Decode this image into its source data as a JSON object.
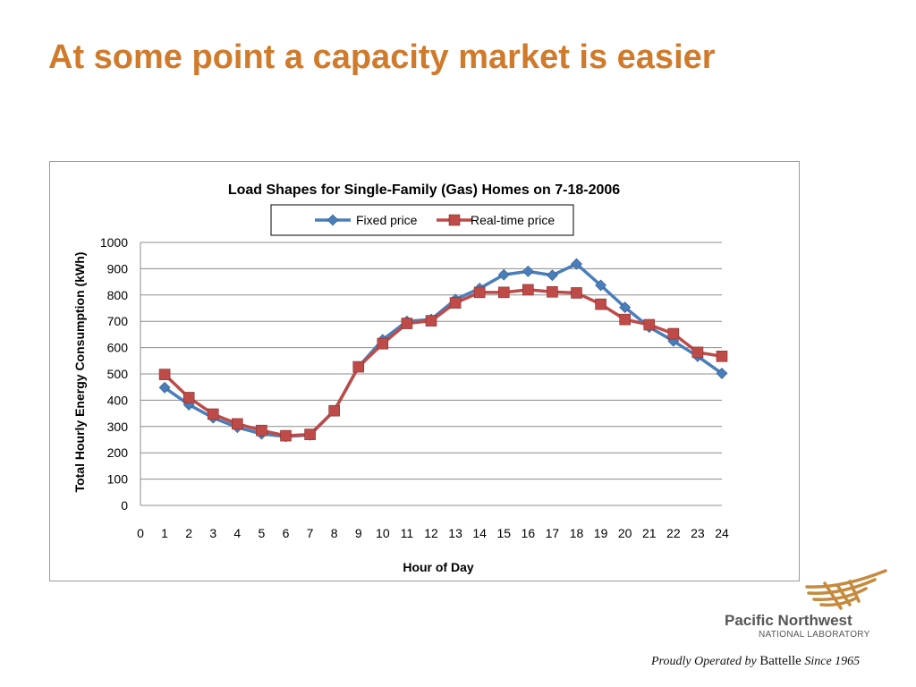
{
  "slide": {
    "title": "At some point a capacity market is easier"
  },
  "chart_data": {
    "type": "line",
    "title": "Load Shapes for Single-Family (Gas) Homes on 7-18-2006",
    "xlabel": "Hour of Day",
    "ylabel": "Total Hourly Energy Consumption (kWh)",
    "x": [
      1,
      2,
      3,
      4,
      5,
      6,
      7,
      8,
      9,
      10,
      11,
      12,
      13,
      14,
      15,
      16,
      17,
      18,
      19,
      20,
      21,
      22,
      23,
      24
    ],
    "x_ticks": [
      "0",
      "1",
      "2",
      "3",
      "4",
      "5",
      "6",
      "7",
      "8",
      "9",
      "10",
      "11",
      "12",
      "13",
      "14",
      "15",
      "16",
      "17",
      "18",
      "19",
      "20",
      "21",
      "22",
      "23",
      "24"
    ],
    "y_ticks": [
      "0",
      "100",
      "200",
      "300",
      "400",
      "500",
      "600",
      "700",
      "800",
      "900",
      "1000"
    ],
    "xlim": [
      0,
      24
    ],
    "ylim": [
      0,
      1000
    ],
    "grid": "horizontal",
    "legend_position": "top-right",
    "series": [
      {
        "name": "Fixed price",
        "color": "#4a7ebb",
        "marker": "diamond",
        "values": [
          448,
          383,
          333,
          297,
          272,
          262,
          268,
          360,
          527,
          630,
          700,
          707,
          783,
          825,
          877,
          890,
          875,
          918,
          837,
          753,
          678,
          625,
          567,
          502
        ]
      },
      {
        "name": "Real-time price",
        "color": "#be4b48",
        "marker": "square",
        "values": [
          498,
          410,
          347,
          310,
          285,
          265,
          270,
          360,
          527,
          615,
          692,
          702,
          770,
          810,
          810,
          820,
          812,
          808,
          765,
          707,
          687,
          653,
          582,
          567
        ]
      }
    ]
  },
  "logo": {
    "name": "Pacific Northwest",
    "subtitle": "NATIONAL LABORATORY",
    "tagline_pre": "Proudly Operated by",
    "tagline_brand": "Battelle",
    "tagline_post": "Since 1965"
  }
}
